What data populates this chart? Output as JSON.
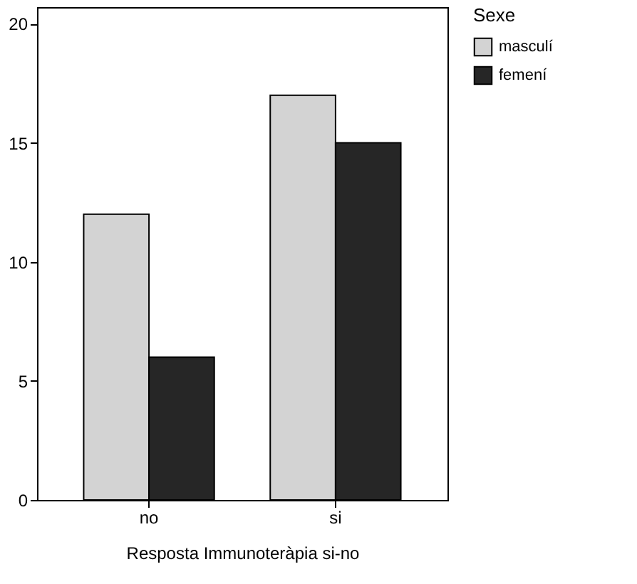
{
  "chart_data": {
    "type": "bar",
    "xlabel": "Resposta Immunoteràpia si-no",
    "legend_title": "Sexe",
    "categories": [
      "no",
      "si"
    ],
    "series": [
      {
        "name": "masculí",
        "color": "#d3d3d3",
        "values": [
          12,
          17
        ]
      },
      {
        "name": "femení",
        "color": "#262626",
        "values": [
          6,
          15
        ]
      }
    ],
    "ylim": [
      0,
      20.7
    ],
    "yticks": [
      0,
      5,
      10,
      15,
      20
    ],
    "grid": false,
    "legend": "top right"
  }
}
